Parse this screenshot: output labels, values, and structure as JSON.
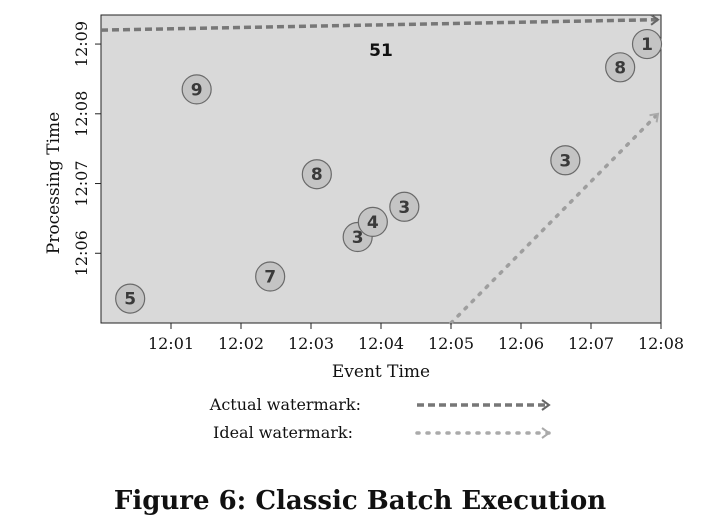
{
  "figure": {
    "caption": "Figure 6: Classic Batch Execution"
  },
  "chart_data": {
    "type": "scatter",
    "xlabel": "Event Time",
    "ylabel": "Processing Time",
    "x_ticks": [
      "12:01",
      "12:02",
      "12:03",
      "12:04",
      "12:05",
      "12:06",
      "12:07",
      "12:08"
    ],
    "y_ticks": [
      "12:06",
      "12:07",
      "12:08",
      "12:09"
    ],
    "xlim": [
      "12:00:00",
      "12:08:00"
    ],
    "ylim": [
      "12:05:00",
      "12:09:25"
    ],
    "points": [
      {
        "x": "12:00:25",
        "y": "12:05:21",
        "value": "5"
      },
      {
        "x": "12:01:22",
        "y": "12:08:21",
        "value": "9"
      },
      {
        "x": "12:02:25",
        "y": "12:05:40",
        "value": "7"
      },
      {
        "x": "12:03:05",
        "y": "12:07:08",
        "value": "8"
      },
      {
        "x": "12:03:40",
        "y": "12:06:14",
        "value": "3"
      },
      {
        "x": "12:03:53",
        "y": "12:06:27",
        "value": "4"
      },
      {
        "x": "12:04:20",
        "y": "12:06:40",
        "value": "3"
      },
      {
        "x": "12:06:38",
        "y": "12:07:20",
        "value": "3"
      },
      {
        "x": "12:07:25",
        "y": "12:08:40",
        "value": "8"
      },
      {
        "x": "12:07:48",
        "y": "12:09:00",
        "value": "1"
      }
    ],
    "series": [
      {
        "name": "Actual watermark",
        "style": "dashed",
        "color": "#777777",
        "x": [
          "12:00:00",
          "12:08:00"
        ],
        "y": [
          "12:09:12",
          "12:09:21"
        ]
      },
      {
        "name": "Ideal watermark",
        "style": "dotted",
        "color": "#9e9e9e",
        "x": [
          "12:05:00",
          "12:08:00"
        ],
        "y": [
          "12:05:00",
          "12:08:00"
        ]
      }
    ],
    "annotations": [
      {
        "text": "51",
        "x": "12:04:00",
        "y": "12:09:07"
      }
    ],
    "legend": {
      "placement": "bottom",
      "entries": [
        {
          "label": "Actual watermark:",
          "style": "dashed",
          "color": "#777777"
        },
        {
          "label": "Ideal watermark:",
          "style": "dotted",
          "color": "#aaaaaa"
        }
      ]
    },
    "plot_background": "#d9d9d9",
    "point_fill": "#c4c4c4",
    "grid": false
  }
}
